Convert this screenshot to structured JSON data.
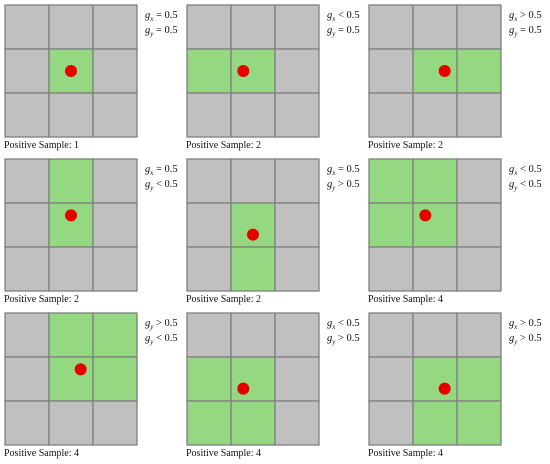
{
  "colors": {
    "cell_gray": "#c0c0c0",
    "cell_green": "#95d882",
    "grid_line": "#7f7f7f",
    "dot_red": "#e60000"
  },
  "panels": [
    {
      "caption": "Positive Sample: 1",
      "cond_x": {
        "var": "g",
        "sub": "x",
        "op": "=",
        "val": "0.5"
      },
      "cond_y": {
        "var": "g",
        "sub": "y",
        "op": "=",
        "val": "0.5"
      },
      "green_cells": [
        [
          1,
          1
        ]
      ],
      "point": {
        "row": 1.5,
        "col": 1.5
      }
    },
    {
      "caption": "Positive Sample: 2",
      "cond_x": {
        "var": "g",
        "sub": "x",
        "op": "<",
        "val": "0.5"
      },
      "cond_y": {
        "var": "g",
        "sub": "y",
        "op": "=",
        "val": "0.5"
      },
      "green_cells": [
        [
          1,
          0
        ],
        [
          1,
          1
        ]
      ],
      "point": {
        "row": 1.5,
        "col": 1.28
      }
    },
    {
      "caption": "Positive Sample: 2",
      "cond_x": {
        "var": "g",
        "sub": "x",
        "op": ">",
        "val": "0.5"
      },
      "cond_y": {
        "var": "g",
        "sub": "y",
        "op": "=",
        "val": "0.5"
      },
      "green_cells": [
        [
          1,
          1
        ],
        [
          1,
          2
        ]
      ],
      "point": {
        "row": 1.5,
        "col": 1.72
      }
    },
    {
      "caption": "Positive Sample: 2",
      "cond_x": {
        "var": "g",
        "sub": "x",
        "op": "=",
        "val": "0.5"
      },
      "cond_y": {
        "var": "g",
        "sub": "y",
        "op": "<",
        "val": "0.5"
      },
      "green_cells": [
        [
          0,
          1
        ],
        [
          1,
          1
        ]
      ],
      "point": {
        "row": 1.28,
        "col": 1.5
      }
    },
    {
      "caption": "Positive Sample: 2",
      "cond_x": {
        "var": "g",
        "sub": "x",
        "op": "=",
        "val": "0.5"
      },
      "cond_y": {
        "var": "g",
        "sub": "y",
        "op": ">",
        "val": "0.5"
      },
      "green_cells": [
        [
          1,
          1
        ],
        [
          2,
          1
        ]
      ],
      "point": {
        "row": 1.72,
        "col": 1.5
      }
    },
    {
      "caption": "Positive Sample: 4",
      "cond_x": {
        "var": "g",
        "sub": "x",
        "op": "<",
        "val": "0.5"
      },
      "cond_y": {
        "var": "g",
        "sub": "y",
        "op": "<",
        "val": "0.5"
      },
      "green_cells": [
        [
          0,
          0
        ],
        [
          0,
          1
        ],
        [
          1,
          0
        ],
        [
          1,
          1
        ]
      ],
      "point": {
        "row": 1.28,
        "col": 1.28
      }
    },
    {
      "caption": "Positive Sample: 4",
      "cond_x": {
        "var": "g",
        "sub": "y",
        "op": ">",
        "val": "0.5"
      },
      "cond_y": {
        "var": "g",
        "sub": "y",
        "op": "<",
        "val": "0.5"
      },
      "green_cells": [
        [
          0,
          1
        ],
        [
          0,
          2
        ],
        [
          1,
          1
        ],
        [
          1,
          2
        ]
      ],
      "point": {
        "row": 1.28,
        "col": 1.72
      }
    },
    {
      "caption": "Positive Sample: 4",
      "cond_x": {
        "var": "g",
        "sub": "x",
        "op": "<",
        "val": "0.5"
      },
      "cond_y": {
        "var": "g",
        "sub": "y",
        "op": ">",
        "val": "0.5"
      },
      "green_cells": [
        [
          1,
          0
        ],
        [
          1,
          1
        ],
        [
          2,
          0
        ],
        [
          2,
          1
        ]
      ],
      "point": {
        "row": 1.72,
        "col": 1.28
      }
    },
    {
      "caption": "Positive Sample: 4",
      "cond_x": {
        "var": "g",
        "sub": "x",
        "op": ">",
        "val": "0.5"
      },
      "cond_y": {
        "var": "g",
        "sub": "y",
        "op": ">",
        "val": "0.5"
      },
      "green_cells": [
        [
          1,
          1
        ],
        [
          1,
          2
        ],
        [
          2,
          1
        ],
        [
          2,
          2
        ]
      ],
      "point": {
        "row": 1.72,
        "col": 1.72
      }
    }
  ]
}
